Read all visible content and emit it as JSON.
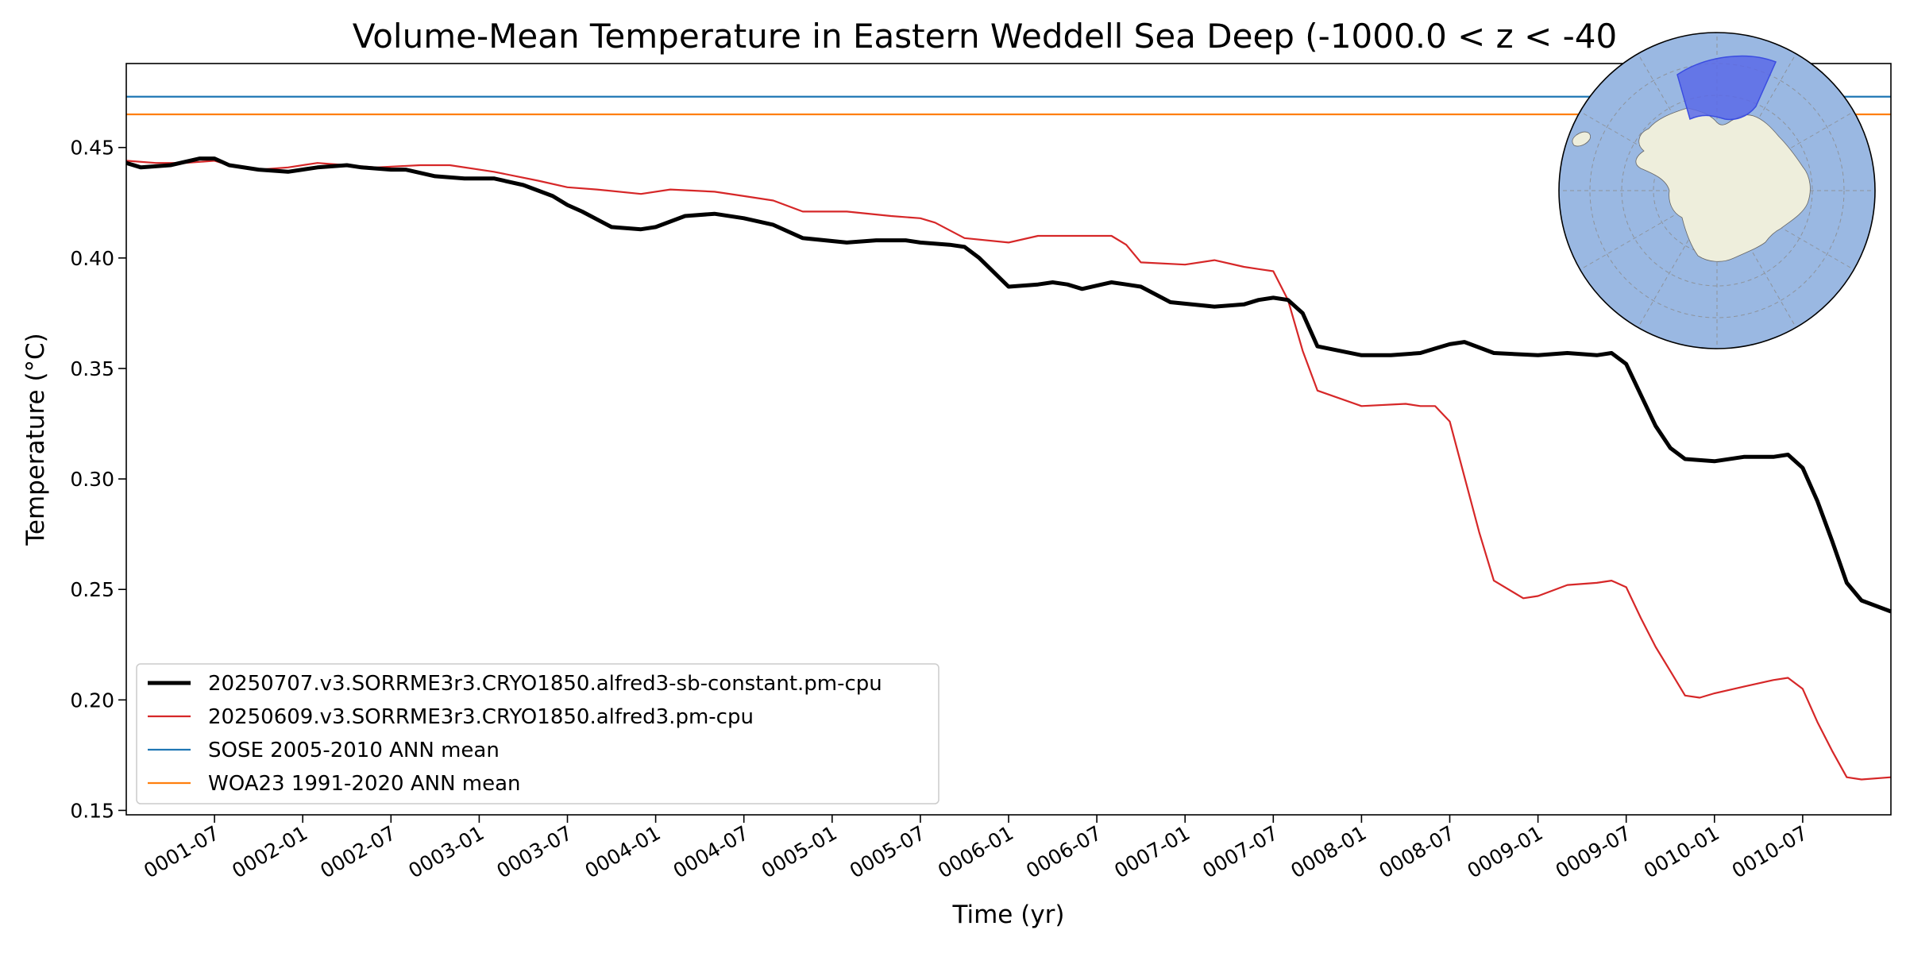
{
  "chart_data": {
    "type": "line",
    "title": "Volume-Mean Temperature in Eastern Weddell Sea Deep (-1000.0 < z < -40",
    "xlabel": "Time (yr)",
    "ylabel": "Temperature (°C)",
    "xlim": [
      "0001-01",
      "0011-01"
    ],
    "ylim": [
      0.148,
      0.488
    ],
    "grid": false,
    "legend_position": "lower-left",
    "x_ticks": [
      "0001-07",
      "0002-01",
      "0002-07",
      "0003-01",
      "0003-07",
      "0004-01",
      "0004-07",
      "0005-01",
      "0005-07",
      "0006-01",
      "0006-07",
      "0007-01",
      "0007-07",
      "0008-01",
      "0008-07",
      "0009-01",
      "0009-07",
      "0010-01",
      "0010-07"
    ],
    "y_ticks": [
      "0.15",
      "0.20",
      "0.25",
      "0.30",
      "0.35",
      "0.40",
      "0.45"
    ],
    "series": [
      {
        "name": "20250707.v3.SORRME3r3.CRYO1850.alfred3-sb-constant.pm-cpu",
        "color": "#000000",
        "style": "thick",
        "x": [
          "0001-01",
          "0001-02",
          "0001-04",
          "0001-06",
          "0001-07",
          "0001-08",
          "0001-10",
          "0001-12",
          "0002-02",
          "0002-04",
          "0002-05",
          "0002-07",
          "0002-08",
          "0002-10",
          "0002-12",
          "0003-02",
          "0003-04",
          "0003-06",
          "0003-07",
          "0003-08",
          "0003-10",
          "0003-12",
          "0004-01",
          "0004-03",
          "0004-05",
          "0004-07",
          "0004-09",
          "0004-11",
          "0005-02",
          "0005-04",
          "0005-06",
          "0005-07",
          "0005-09",
          "0005-10",
          "0005-11",
          "0006-01",
          "0006-03",
          "0006-04",
          "0006-05",
          "0006-06",
          "0006-08",
          "0006-09",
          "0006-10",
          "0006-12",
          "0007-03",
          "0007-05",
          "0007-06",
          "0007-07",
          "0007-08",
          "0007-09",
          "0007-10",
          "0008-01",
          "0008-03",
          "0008-05",
          "0008-06",
          "0008-07",
          "0008-08",
          "0008-10",
          "0009-01",
          "0009-03",
          "0009-05",
          "0009-06",
          "0009-07",
          "0009-08",
          "0009-09",
          "0009-10",
          "0009-11",
          "0010-01",
          "0010-03",
          "0010-05",
          "0010-06",
          "0010-07",
          "0010-08",
          "0010-09",
          "0010-10",
          "0010-11",
          "0011-01"
        ],
        "y": [
          0.443,
          0.441,
          0.442,
          0.445,
          0.445,
          0.442,
          0.44,
          0.439,
          0.441,
          0.442,
          0.441,
          0.44,
          0.44,
          0.437,
          0.436,
          0.436,
          0.433,
          0.428,
          0.424,
          0.421,
          0.414,
          0.413,
          0.414,
          0.419,
          0.42,
          0.418,
          0.415,
          0.409,
          0.407,
          0.408,
          0.408,
          0.407,
          0.406,
          0.405,
          0.4,
          0.387,
          0.388,
          0.389,
          0.388,
          0.386,
          0.389,
          0.388,
          0.387,
          0.38,
          0.378,
          0.379,
          0.381,
          0.382,
          0.381,
          0.375,
          0.36,
          0.356,
          0.356,
          0.357,
          0.359,
          0.361,
          0.362,
          0.357,
          0.356,
          0.357,
          0.356,
          0.357,
          0.352,
          0.338,
          0.324,
          0.314,
          0.309,
          0.308,
          0.31,
          0.31,
          0.311,
          0.305,
          0.29,
          0.272,
          0.253,
          0.245,
          0.24
        ]
      },
      {
        "name": "20250609.v3.SORRME3r3.CRYO1850.alfred3.pm-cpu",
        "color": "#d62728",
        "style": "thin",
        "x": [
          "0001-01",
          "0001-03",
          "0001-05",
          "0001-07",
          "0001-08",
          "0001-10",
          "0001-12",
          "0002-02",
          "0002-04",
          "0002-06",
          "0002-09",
          "0002-11",
          "0003-02",
          "0003-05",
          "0003-07",
          "0003-09",
          "0003-12",
          "0004-02",
          "0004-05",
          "0004-07",
          "0004-09",
          "0004-11",
          "0005-02",
          "0005-05",
          "0005-07",
          "0005-08",
          "0005-10",
          "0006-01",
          "0006-03",
          "0006-06",
          "0006-08",
          "0006-09",
          "0006-10",
          "0007-01",
          "0007-03",
          "0007-05",
          "0007-06",
          "0007-07",
          "0007-08",
          "0007-09",
          "0007-10",
          "0008-01",
          "0008-04",
          "0008-05",
          "0008-06",
          "0008-07",
          "0008-08",
          "0008-09",
          "0008-10",
          "0008-12",
          "0009-01",
          "0009-03",
          "0009-05",
          "0009-06",
          "0009-07",
          "0009-08",
          "0009-09",
          "0009-10",
          "0009-11",
          "0009-12",
          "0010-01",
          "0010-03",
          "0010-05",
          "0010-06",
          "0010-07",
          "0010-08",
          "0010-09",
          "0010-10",
          "0010-11",
          "0011-01"
        ],
        "y": [
          0.444,
          0.443,
          0.443,
          0.444,
          0.442,
          0.44,
          0.441,
          0.443,
          0.442,
          0.441,
          0.442,
          0.442,
          0.439,
          0.435,
          0.432,
          0.431,
          0.429,
          0.431,
          0.43,
          0.428,
          0.426,
          0.421,
          0.421,
          0.419,
          0.418,
          0.416,
          0.409,
          0.407,
          0.41,
          0.41,
          0.41,
          0.406,
          0.398,
          0.397,
          0.399,
          0.396,
          0.395,
          0.394,
          0.381,
          0.358,
          0.34,
          0.333,
          0.334,
          0.333,
          0.333,
          0.326,
          0.301,
          0.276,
          0.254,
          0.246,
          0.247,
          0.252,
          0.253,
          0.254,
          0.251,
          0.237,
          0.224,
          0.213,
          0.202,
          0.201,
          0.203,
          0.206,
          0.209,
          0.21,
          0.205,
          0.19,
          0.177,
          0.165,
          0.164,
          0.165
        ]
      },
      {
        "name": "SOSE 2005-2010 ANN mean",
        "color": "#1f77b4",
        "style": "hline",
        "y": 0.473
      },
      {
        "name": "WOA23 1991-2020 ANN mean",
        "color": "#ff7f0e",
        "style": "hline",
        "y": 0.465
      }
    ],
    "inset": {
      "type": "south-polar-map",
      "ocean_color": "#9ab8e2",
      "land_color": "#eeeedc",
      "region_color": "#5b6ae8",
      "position": "top-right"
    }
  }
}
